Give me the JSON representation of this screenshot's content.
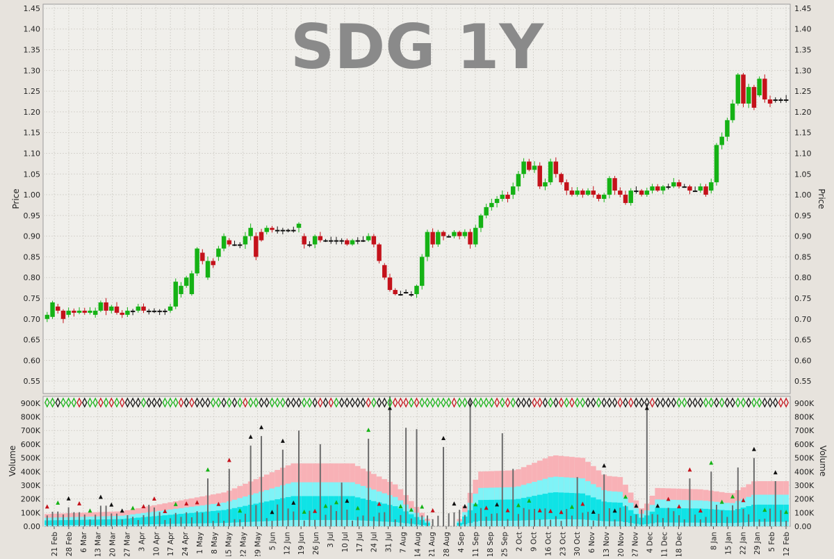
{
  "title": "SDG 1Y",
  "colors": {
    "background": "#e7e3dd",
    "plot_background": "#f0efeb",
    "grid": "#d5d3cd",
    "up": "#15b215",
    "down": "#c4121b",
    "neutral": "#111111",
    "volume_bar": "#6b6b6b",
    "band_outer": "#f8b1b6",
    "band_mid": "#7ff3f7",
    "band_inner": "#0fe3e6",
    "title": "#8a8a8a"
  },
  "chart_data": [
    {
      "type": "candlestick",
      "title": "SDG 1Y",
      "ylabel": "Price",
      "ylim": [
        0.52,
        1.46
      ],
      "yticks": [
        "0.55",
        "0.60",
        "0.65",
        "0.70",
        "0.75",
        "0.80",
        "0.85",
        "0.90",
        "0.95",
        "1.00",
        "1.05",
        "1.10",
        "1.15",
        "1.20",
        "1.25",
        "1.30",
        "1.35",
        "1.40",
        "1.45"
      ],
      "x_tick_labels": [
        "21 Feb",
        "28 Feb",
        "6 Mar",
        "13 Mar",
        "20 Mar",
        "27 Mar",
        "3 Apr",
        "10 Apr",
        "17 Apr",
        "24 Apr",
        "1 May",
        "8 May",
        "15 May",
        "22 May",
        "29 May",
        "5 Jun",
        "12 Jun",
        "19 Jun",
        "26 Jun",
        "3 Jul",
        "10 Jul",
        "17 Jul",
        "24 Jul",
        "31 Jul",
        "7 Aug",
        "14 Aug",
        "21 Aug",
        "28 Aug",
        "4 Sep",
        "11 Sep",
        "18 Sep",
        "25 Sep",
        "2 Oct",
        "9 Oct",
        "16 Oct",
        "23 Oct",
        "30 Oct",
        "6 Nov",
        "13 Nov",
        "20 Nov",
        "27 Nov",
        "4 Dec",
        "11 Dec",
        "18 Dec",
        "8 Jan",
        "15 Jan",
        "22 Jan",
        "29 Jan",
        "5 Feb",
        "12 Feb"
      ],
      "price_path": [
        [
          0.7,
          0.71
        ],
        [
          0.705,
          0.74
        ],
        [
          0.73,
          0.72
        ],
        [
          0.72,
          0.7
        ],
        [
          0.71,
          0.72
        ],
        [
          0.72,
          0.715
        ],
        [
          0.715,
          0.72
        ],
        [
          0.72,
          0.715
        ],
        [
          0.715,
          0.72
        ],
        [
          0.71,
          0.72
        ],
        [
          0.72,
          0.74
        ],
        [
          0.74,
          0.72
        ],
        [
          0.72,
          0.73
        ],
        [
          0.73,
          0.715
        ],
        [
          0.715,
          0.71
        ],
        [
          0.71,
          0.72
        ],
        [
          0.72,
          0.72
        ],
        [
          0.72,
          0.73
        ],
        [
          0.73,
          0.72
        ],
        [
          0.72,
          0.72
        ],
        [
          0.72,
          0.72
        ],
        [
          0.72,
          0.72
        ],
        [
          0.72,
          0.72
        ],
        [
          0.72,
          0.73
        ],
        [
          0.73,
          0.79
        ],
        [
          0.76,
          0.78
        ],
        [
          0.78,
          0.8
        ],
        [
          0.76,
          0.81
        ],
        [
          0.81,
          0.87
        ],
        [
          0.86,
          0.84
        ],
        [
          0.8,
          0.84
        ],
        [
          0.84,
          0.83
        ],
        [
          0.85,
          0.87
        ],
        [
          0.87,
          0.9
        ],
        [
          0.89,
          0.88
        ],
        [
          0.88,
          0.88
        ],
        [
          0.88,
          0.88
        ],
        [
          0.88,
          0.9
        ],
        [
          0.9,
          0.92
        ],
        [
          0.9,
          0.85
        ],
        [
          0.91,
          0.89
        ],
        [
          0.91,
          0.92
        ],
        [
          0.92,
          0.915
        ],
        [
          0.915,
          0.915
        ],
        [
          0.915,
          0.915
        ],
        [
          0.915,
          0.915
        ],
        [
          0.915,
          0.915
        ],
        [
          0.92,
          0.93
        ],
        [
          0.9,
          0.88
        ],
        [
          0.88,
          0.88
        ],
        [
          0.88,
          0.9
        ],
        [
          0.9,
          0.89
        ],
        [
          0.89,
          0.89
        ],
        [
          0.89,
          0.89
        ],
        [
          0.89,
          0.89
        ],
        [
          0.89,
          0.89
        ],
        [
          0.89,
          0.88
        ],
        [
          0.88,
          0.89
        ],
        [
          0.89,
          0.89
        ],
        [
          0.89,
          0.89
        ],
        [
          0.89,
          0.9
        ],
        [
          0.9,
          0.88
        ],
        [
          0.88,
          0.84
        ],
        [
          0.83,
          0.8
        ],
        [
          0.8,
          0.77
        ],
        [
          0.77,
          0.76
        ],
        [
          0.76,
          0.76
        ],
        [
          0.765,
          0.765
        ],
        [
          0.76,
          0.76
        ],
        [
          0.76,
          0.78
        ],
        [
          0.78,
          0.85
        ],
        [
          0.85,
          0.91
        ],
        [
          0.91,
          0.88
        ],
        [
          0.88,
          0.91
        ],
        [
          0.91,
          0.9
        ],
        [
          0.9,
          0.9
        ],
        [
          0.9,
          0.91
        ],
        [
          0.91,
          0.9
        ],
        [
          0.9,
          0.91
        ],
        [
          0.91,
          0.88
        ],
        [
          0.88,
          0.92
        ],
        [
          0.92,
          0.95
        ],
        [
          0.95,
          0.97
        ],
        [
          0.97,
          0.98
        ],
        [
          0.98,
          0.99
        ],
        [
          0.99,
          1.0
        ],
        [
          1.0,
          0.99
        ],
        [
          1.0,
          1.02
        ],
        [
          1.02,
          1.05
        ],
        [
          1.05,
          1.08
        ],
        [
          1.08,
          1.06
        ],
        [
          1.06,
          1.07
        ],
        [
          1.07,
          1.02
        ],
        [
          1.02,
          1.03
        ],
        [
          1.03,
          1.08
        ],
        [
          1.08,
          1.05
        ],
        [
          1.05,
          1.03
        ],
        [
          1.03,
          1.01
        ],
        [
          1.01,
          1.0
        ],
        [
          1.0,
          1.01
        ],
        [
          1.01,
          1.0
        ],
        [
          1.0,
          1.01
        ],
        [
          1.01,
          1.0
        ],
        [
          1.0,
          0.99
        ],
        [
          0.99,
          1.0
        ],
        [
          1.0,
          1.04
        ],
        [
          1.04,
          1.01
        ],
        [
          1.01,
          1.0
        ],
        [
          1.0,
          0.98
        ],
        [
          0.98,
          1.01
        ],
        [
          1.01,
          1.01
        ],
        [
          1.01,
          1.0
        ],
        [
          1.0,
          1.01
        ],
        [
          1.01,
          1.02
        ],
        [
          1.02,
          1.01
        ],
        [
          1.01,
          1.02
        ],
        [
          1.02,
          1.02
        ],
        [
          1.02,
          1.03
        ],
        [
          1.03,
          1.02
        ],
        [
          1.02,
          1.02
        ],
        [
          1.02,
          1.01
        ],
        [
          1.01,
          1.01
        ],
        [
          1.01,
          1.02
        ],
        [
          1.02,
          1.0
        ],
        [
          1.01,
          1.03
        ],
        [
          1.03,
          1.12
        ],
        [
          1.12,
          1.14
        ],
        [
          1.14,
          1.18
        ],
        [
          1.18,
          1.22
        ],
        [
          1.22,
          1.29
        ],
        [
          1.29,
          1.22
        ],
        [
          1.22,
          1.26
        ],
        [
          1.26,
          1.21
        ],
        [
          1.24,
          1.28
        ],
        [
          1.28,
          1.23
        ],
        [
          1.23,
          1.22
        ],
        [
          1.23,
          1.23
        ],
        [
          1.23,
          1.23
        ],
        [
          1.23,
          1.23
        ]
      ],
      "volume": {
        "ylabel": "Volume",
        "ylim": [
          0,
          950000
        ],
        "yticks": [
          "0.00",
          "100K",
          "200K",
          "300K",
          "400K",
          "500K",
          "600K",
          "700K",
          "800K",
          "900K"
        ]
      }
    }
  ]
}
